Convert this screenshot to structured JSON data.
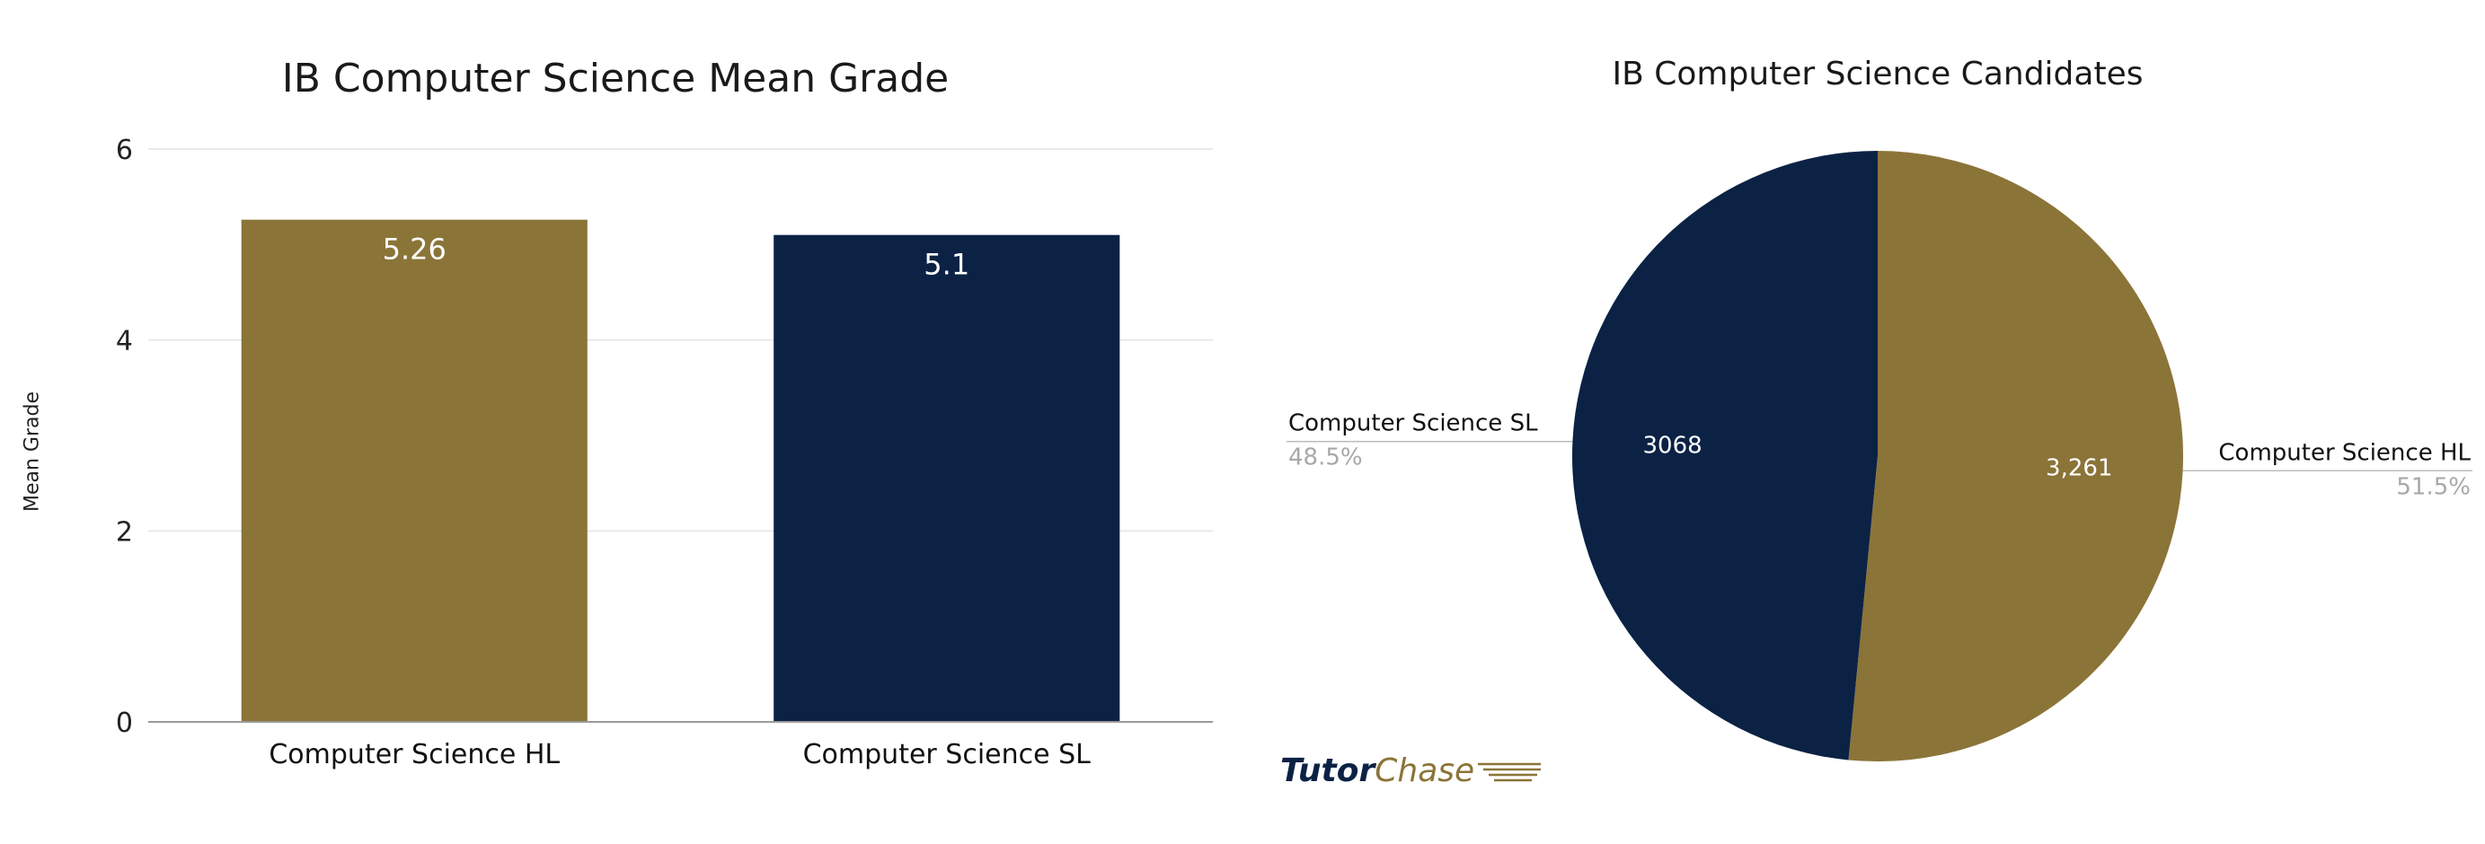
{
  "chart_data": [
    {
      "type": "bar",
      "title": "IB Computer Science Mean Grade",
      "ylabel": "Mean Grade",
      "ylim": [
        0,
        6
      ],
      "yticks": [
        0,
        2,
        4,
        6
      ],
      "grid": true,
      "categories": [
        "Computer Science HL",
        "Computer Science SL"
      ],
      "values": [
        5.26,
        5.1
      ],
      "value_labels": [
        "5.26",
        "5.1"
      ],
      "colors": [
        "#8b7438",
        "#0b2245"
      ]
    },
    {
      "type": "pie",
      "title": "IB Computer Science Candidates",
      "slices": [
        {
          "label": "Computer Science HL",
          "value": 3261,
          "value_label": "3,261",
          "percent": "51.5%",
          "color": "#8b7438"
        },
        {
          "label": "Computer Science SL",
          "value": 3068,
          "value_label": "3068",
          "percent": "48.5%",
          "color": "#0b2245"
        }
      ]
    }
  ],
  "branding": {
    "logo_part1": "Tutor",
    "logo_part2": "Chase"
  }
}
